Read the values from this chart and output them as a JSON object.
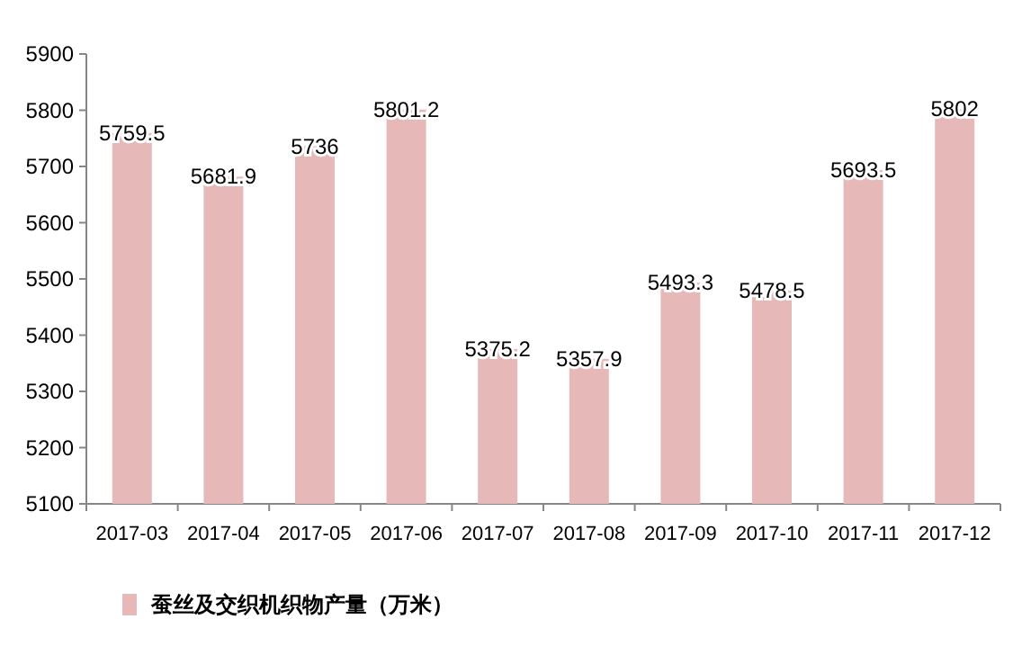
{
  "chart_data": {
    "type": "bar",
    "categories": [
      "2017-03",
      "2017-04",
      "2017-05",
      "2017-06",
      "2017-07",
      "2017-08",
      "2017-09",
      "2017-10",
      "2017-11",
      "2017-12"
    ],
    "series": [
      {
        "name": "蚕丝及交织机织物产量（万米）",
        "color": "#e6b9b8",
        "values": [
          5759.5,
          5681.9,
          5736,
          5801.2,
          5375.2,
          5357.9,
          5493.3,
          5478.5,
          5693.5,
          5802
        ]
      }
    ],
    "ylim": [
      5100,
      5900
    ],
    "yticks": [
      5100,
      5200,
      5300,
      5400,
      5500,
      5600,
      5700,
      5800,
      5900
    ],
    "data_labels": true,
    "legend": "bottom"
  }
}
